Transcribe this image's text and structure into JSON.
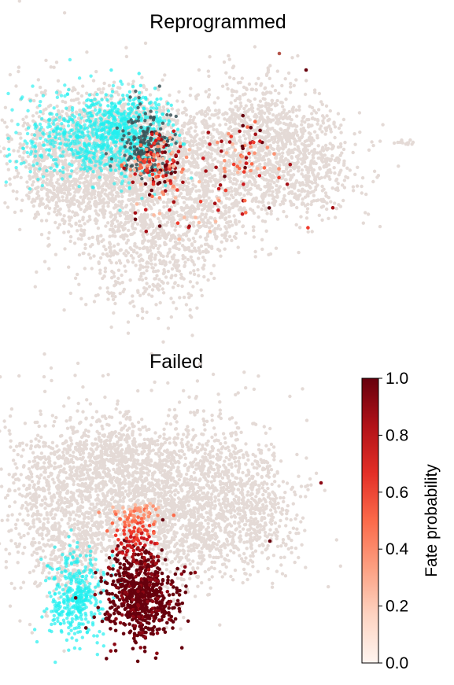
{
  "chart_data": [
    {
      "type": "scatter",
      "title": "Reprogrammed",
      "point_groups": [
        {
          "color": "#e4dad6",
          "role": "background-cells"
        },
        {
          "color": "#21f0ef",
          "role": "cyan-cells"
        },
        {
          "color": "#3c5358",
          "role": "dark-teal-cells"
        },
        {
          "color": "#ef5f46",
          "role": "high-probability-cells"
        }
      ]
    },
    {
      "type": "scatter",
      "title": "Failed",
      "point_groups": [
        {
          "color": "#e4dad6",
          "role": "background-cells"
        },
        {
          "color": "#21f0ef",
          "role": "cyan-cells"
        },
        {
          "color": "#8c0713",
          "role": "high-probability-cells"
        }
      ]
    }
  ],
  "colorbar": {
    "label": "Fate probability",
    "ticks": [
      "0.0",
      "0.2",
      "0.4",
      "0.6",
      "0.8",
      "1.0"
    ],
    "range": [
      0,
      1
    ],
    "colormap": "Reds",
    "stops": [
      "#fff5f0",
      "#fdd4c2",
      "#fca082",
      "#fb6a4a",
      "#e32f27",
      "#b11218",
      "#67000d"
    ]
  }
}
